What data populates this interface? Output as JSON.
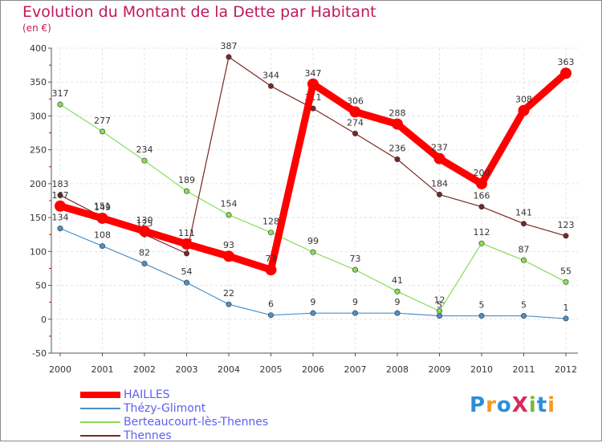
{
  "chart_data": {
    "type": "line",
    "title": "Evolution du Montant de la Dette par Habitant",
    "ylabel": "(en €)",
    "xlabel": "",
    "x": [
      "2000",
      "2001",
      "2002",
      "2003",
      "2004",
      "2005",
      "2006",
      "2007",
      "2008",
      "2009",
      "2010",
      "2011",
      "2012"
    ],
    "ylim": [
      -50,
      400
    ],
    "yticks": [
      "400",
      "350",
      "300",
      "250",
      "200",
      "150",
      "100",
      "50",
      "0",
      "-50"
    ],
    "series": [
      {
        "name": "HAILLES",
        "color": "#ff0000",
        "values": [
          167,
          149,
          130,
          111,
          93,
          73,
          347,
          306,
          288,
          237,
          200,
          308,
          363
        ],
        "labels": [
          "167",
          "149",
          "130",
          "111",
          "93",
          "73",
          "347",
          "306",
          "288",
          "237",
          "200",
          "308",
          "363"
        ]
      },
      {
        "name": "Thézy-Glimont",
        "color": "#4a90c8",
        "values": [
          134,
          108,
          82,
          54,
          22,
          6,
          9,
          9,
          9,
          5,
          5,
          5,
          1
        ],
        "labels": [
          "134",
          "108",
          "82",
          "54",
          "22",
          "6",
          "9",
          "9",
          "9",
          "5",
          "5",
          "5",
          "1"
        ]
      },
      {
        "name": "Berteaucourt-lès-Thennes",
        "color": "#88dd55",
        "values": [
          317,
          277,
          234,
          189,
          154,
          128,
          99,
          73,
          41,
          12,
          112,
          87,
          55
        ],
        "labels": [
          "317",
          "277",
          "234",
          "189",
          "154",
          "128",
          "99",
          "73",
          "41",
          "12",
          "112",
          "87",
          "55"
        ]
      },
      {
        "name": "Thennes",
        "color": "#7a2626",
        "values": [
          183,
          151,
          125,
          97,
          387,
          344,
          311,
          274,
          236,
          184,
          166,
          141,
          123
        ],
        "labels": [
          "183",
          "151",
          "125",
          "97",
          "387",
          "344",
          "311",
          "274",
          "236",
          "184",
          "166",
          "141",
          "123"
        ]
      }
    ]
  },
  "brand": {
    "logo_text": "ProXiti"
  }
}
